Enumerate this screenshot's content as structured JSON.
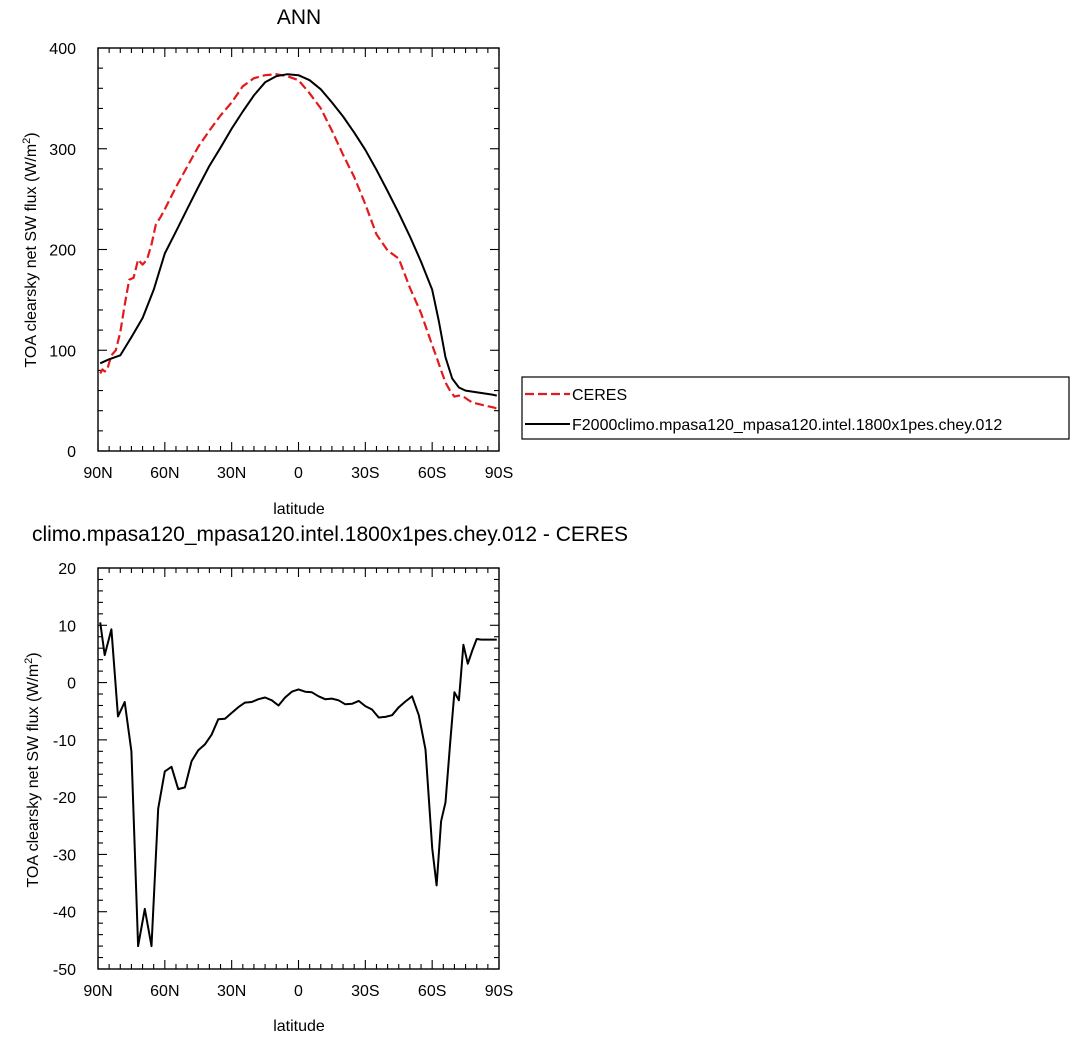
{
  "chart_data": [
    {
      "type": "line",
      "title": "ANN",
      "xlabel": "latitude",
      "ylabel": "TOA clearsky net SW flux (W/m",
      "ylabel_sup": "2",
      "ylabel_end": ")",
      "xlim": [
        90,
        -90
      ],
      "ylim": [
        0,
        400
      ],
      "x_ticks": [
        90,
        60,
        30,
        0,
        -30,
        -60,
        -90
      ],
      "x_tick_labels": [
        "90N",
        "60N",
        "30N",
        "0",
        "30S",
        "60S",
        "90S"
      ],
      "y_ticks": [
        0,
        100,
        200,
        300,
        400
      ],
      "y_tick_labels": [
        "0",
        "100",
        "200",
        "300",
        "400"
      ],
      "legend": "right",
      "series": [
        {
          "name": "CERES",
          "color": "#e31a1c",
          "dash": "dashed",
          "x": [
            89,
            88,
            87,
            86,
            84,
            82,
            80,
            78,
            76,
            74,
            72,
            70,
            68,
            66,
            64,
            62,
            60,
            55,
            50,
            45,
            40,
            35,
            30,
            25,
            20,
            15,
            10,
            5,
            0,
            -5,
            -10,
            -15,
            -20,
            -25,
            -30,
            -35,
            -40,
            -45,
            -50,
            -55,
            -60,
            -62,
            -64,
            -66,
            -68,
            -70,
            -72,
            -74,
            -76,
            -78,
            -80,
            -82,
            -84,
            -86,
            -88,
            -89
          ],
          "y": [
            77,
            81,
            79,
            80,
            95,
            100,
            118,
            145,
            170,
            172,
            190,
            185,
            190,
            205,
            225,
            232,
            240,
            262,
            282,
            302,
            318,
            333,
            346,
            362,
            370,
            373,
            374,
            372,
            368,
            355,
            340,
            318,
            294,
            272,
            245,
            215,
            199,
            191,
            162,
            137,
            105,
            93,
            80,
            68,
            60,
            54,
            55,
            54,
            51,
            48,
            47,
            46,
            45,
            44,
            43,
            42
          ]
        },
        {
          "name": "F2000climo.mpasa120_mpasa120.intel.1800x1pes.chey.012",
          "color": "#000000",
          "dash": "solid",
          "x": [
            89,
            85,
            80,
            75,
            70,
            65,
            60,
            55,
            50,
            45,
            40,
            35,
            30,
            25,
            20,
            15,
            10,
            5,
            0,
            -5,
            -10,
            -15,
            -20,
            -25,
            -30,
            -35,
            -40,
            -45,
            -50,
            -55,
            -60,
            -63,
            -66,
            -69,
            -72,
            -75,
            -78,
            -81,
            -84,
            -87,
            -89
          ],
          "y": [
            87,
            91,
            95,
            113,
            132,
            160,
            196,
            218,
            240,
            262,
            283,
            301,
            320,
            337,
            353,
            366,
            372,
            374,
            373,
            368,
            359,
            346,
            332,
            316,
            299,
            279,
            258,
            236,
            213,
            188,
            160,
            129,
            93,
            72,
            63,
            60,
            59,
            58,
            57,
            56,
            55
          ]
        }
      ]
    },
    {
      "type": "line",
      "title": "climo.mpasa120_mpasa120.intel.1800x1pes.chey.012 - CERES",
      "xlabel": "latitude",
      "ylabel": "TOA clearsky net SW flux (W/m",
      "ylabel_sup": "2",
      "ylabel_end": ")",
      "xlim": [
        90,
        -90
      ],
      "ylim": [
        -50,
        20
      ],
      "x_ticks": [
        90,
        60,
        30,
        0,
        -30,
        -60,
        -90
      ],
      "x_tick_labels": [
        "90N",
        "60N",
        "30N",
        "0",
        "30S",
        "60S",
        "90S"
      ],
      "y_ticks": [
        -50,
        -40,
        -30,
        -20,
        -10,
        0,
        10,
        20
      ],
      "y_tick_labels": [
        "-50",
        "-40",
        "-30",
        "-20",
        "-10",
        "0",
        "10",
        "20"
      ],
      "series": [
        {
          "color": "#000000",
          "dash": "solid",
          "x": [
            89,
            87,
            84,
            81,
            78,
            75,
            72,
            69,
            66,
            63,
            60,
            57,
            54,
            51,
            48,
            45,
            42,
            39,
            36,
            33,
            30,
            27,
            24,
            21,
            18,
            15,
            12,
            9,
            6,
            3,
            0,
            -3,
            -6,
            -9,
            -12,
            -15,
            -18,
            -21,
            -24,
            -27,
            -30,
            -33,
            -36,
            -39,
            -42,
            -45,
            -48,
            -51,
            -54,
            -57,
            -60,
            -62,
            -64,
            -66,
            -68,
            -70,
            -72,
            -74,
            -76,
            -78,
            -80,
            -82,
            -84,
            -86,
            -88,
            -89
          ],
          "y": [
            10.5,
            4.8,
            9.3,
            -5.9,
            -3.4,
            -12,
            -46,
            -39.5,
            -46,
            -22,
            -15.5,
            -14.7,
            -18.6,
            -18.3,
            -13.7,
            -11.8,
            -10.8,
            -9.1,
            -6.4,
            -6.3,
            -5.3,
            -4.3,
            -3.5,
            -3.4,
            -2.9,
            -2.6,
            -3.1,
            -4,
            -2.6,
            -1.6,
            -1.2,
            -1.6,
            -1.7,
            -2.4,
            -2.9,
            -2.8,
            -3.1,
            -3.8,
            -3.7,
            -3.2,
            -4.1,
            -4.7,
            -6.1,
            -6,
            -5.7,
            -4.3,
            -3.3,
            -2.4,
            -5.7,
            -11.7,
            -28.9,
            -35.4,
            -24.2,
            -20.9,
            -10.9,
            -1.7,
            -3.1,
            6.6,
            3.3,
            5.6,
            7.6,
            7.5,
            7.5,
            7.5,
            7.5,
            7.5
          ]
        }
      ]
    }
  ]
}
